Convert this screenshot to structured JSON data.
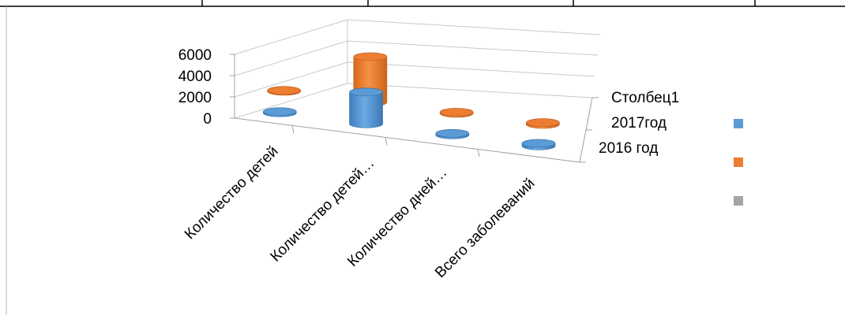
{
  "chart_data": {
    "type": "bar",
    "variant": "3d-cylinder",
    "categories": [
      "Количество детей",
      "Количество детей…",
      "Количество дней…",
      "Всего заболеваний"
    ],
    "series": [
      {
        "name": "2016 год",
        "color": "#5B9BD5",
        "values": [
          120,
          3000,
          150,
          250
        ]
      },
      {
        "name": "2017год",
        "color": "#ED7D31",
        "values": [
          100,
          4300,
          120,
          180
        ]
      },
      {
        "name": "Столбец1",
        "color": "#A5A5A5",
        "values": [
          0,
          0,
          0,
          0
        ]
      }
    ],
    "depth_labels": [
      "2016 год",
      "2017год",
      "Столбец1"
    ],
    "y_ticks": [
      "0",
      "2000",
      "4000",
      "6000"
    ],
    "ylim": [
      0,
      6000
    ],
    "legend_position": "right",
    "legend_labels_visible": false,
    "grid": true
  },
  "colors": {
    "series1": "#5B9BD5",
    "series2": "#ED7D31",
    "series3": "#A5A5A5"
  }
}
